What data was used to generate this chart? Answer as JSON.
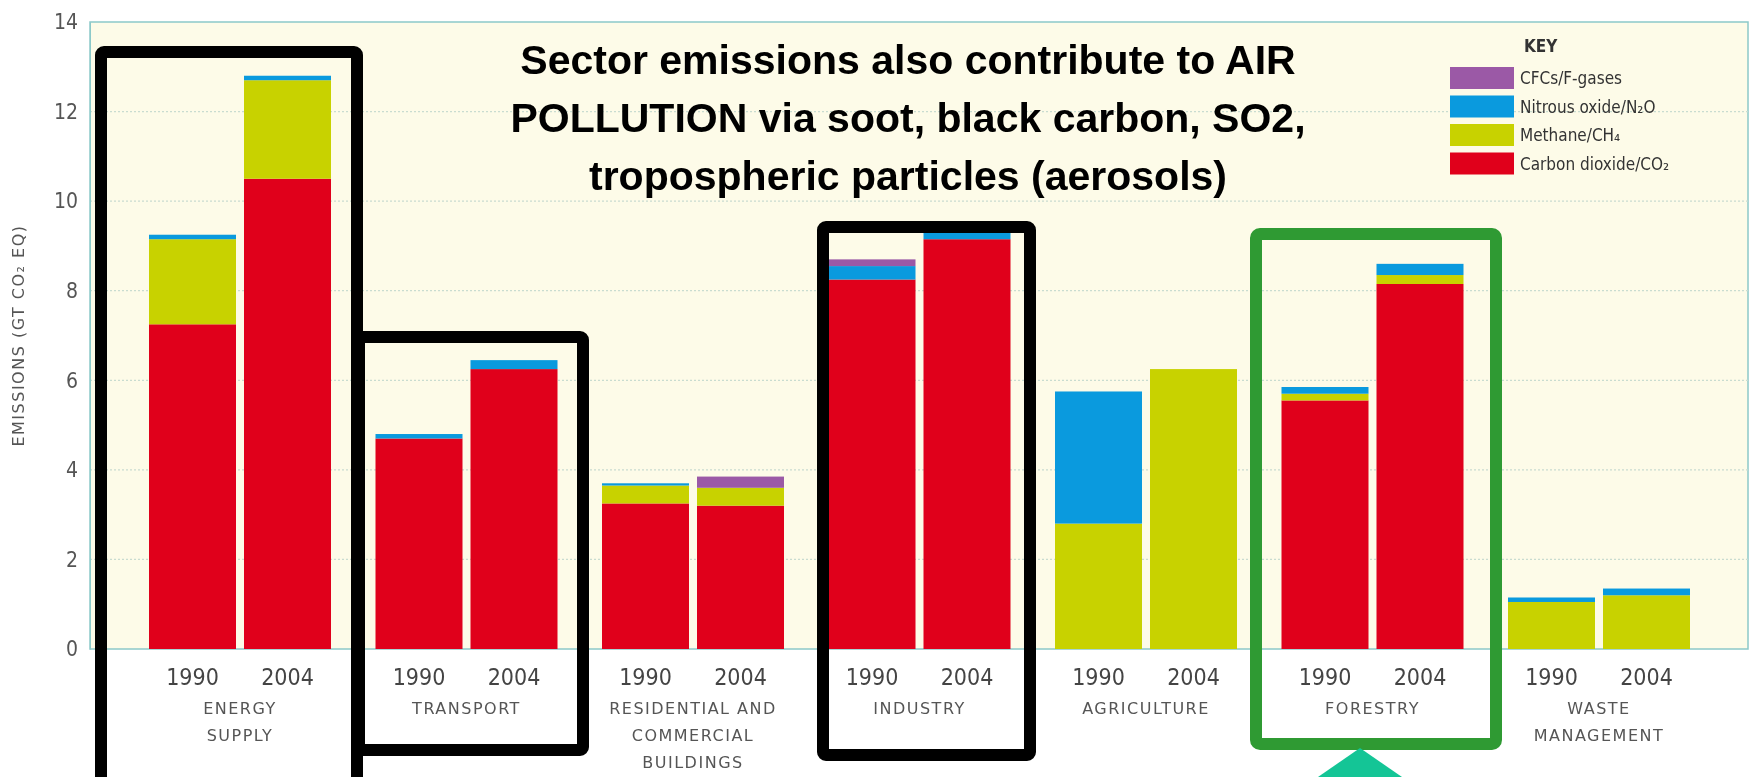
{
  "chart_data": {
    "type": "bar",
    "stacked": true,
    "title": "Sector emissions also contribute to AIR POLLUTION via soot, black carbon, SO2, tropospheric particles (aerosols)",
    "ylabel": "EMISSIONS (GT CO₂ EQ)",
    "legend_title": "KEY",
    "legend": "top right",
    "grid": "y",
    "categories": [
      "1990",
      "2004",
      "1990",
      "2004",
      "1990",
      "2004",
      "1990",
      "2004",
      "1990",
      "2004",
      "1990",
      "2004",
      "1990",
      "2004"
    ],
    "annotations": [
      "ENERGY\nSUPPLY",
      "TRANSPORT",
      "RESIDENTIAL AND\nCOMMERCIAL\nBUILDINGS",
      "INDUSTRY",
      "AGRICULTURE",
      "FORESTRY",
      "WASTE\nMANAGEMENT"
    ],
    "ylim": [
      0,
      14
    ],
    "yticks": [
      0,
      2,
      4,
      6,
      8,
      10,
      12,
      14
    ],
    "series": [
      {
        "name": "Carbon dioxide/CO₂",
        "color": "#e0001b",
        "values": [
          7.25,
          10.5,
          4.7,
          6.25,
          3.25,
          3.2,
          8.25,
          9.15,
          null,
          null,
          5.55,
          8.15,
          null,
          null
        ]
      },
      {
        "name": "Methane/CH₄",
        "color": "#c8d200",
        "values": [
          1.9,
          2.2,
          null,
          null,
          0.4,
          0.4,
          null,
          null,
          2.8,
          6.25,
          0.15,
          0.2,
          1.05,
          1.2
        ]
      },
      {
        "name": "Nitrous oxide/N₂O",
        "color": "#0a9ade",
        "values": [
          0.1,
          0.1,
          0.1,
          0.2,
          0.05,
          null,
          0.3,
          0.15,
          2.95,
          null,
          0.15,
          0.25,
          0.1,
          0.15
        ]
      },
      {
        "name": "CFCs/F-gases",
        "color": "#9b59a6",
        "values": [
          null,
          null,
          null,
          null,
          null,
          0.25,
          0.15,
          null,
          null,
          null,
          null,
          null,
          null,
          null
        ]
      }
    ]
  }
}
